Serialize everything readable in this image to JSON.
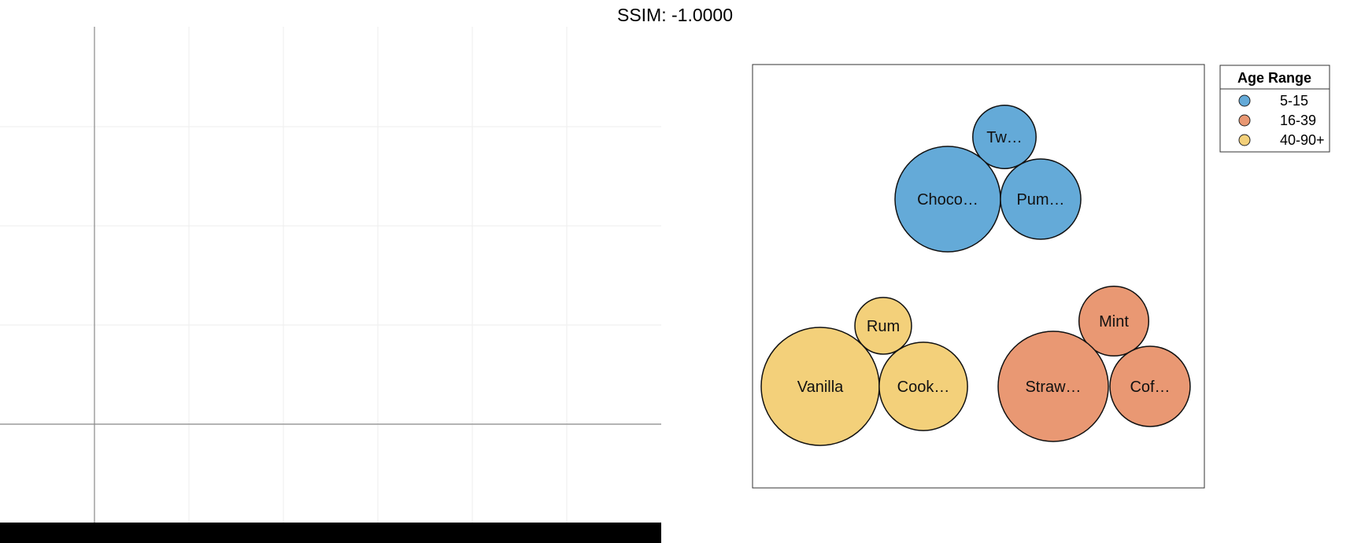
{
  "title": "SSIM: -1.0000",
  "chart_data": [
    {
      "type": "line",
      "title": "",
      "xlabel": "",
      "ylabel": "",
      "grid": true,
      "series": []
    },
    {
      "type": "bubble",
      "title": "",
      "legend": {
        "title": "Age Range",
        "placement": "top-right",
        "entries": [
          {
            "name": "5-15",
            "color": "#64aad8"
          },
          {
            "name": "16-39",
            "color": "#e99873"
          },
          {
            "name": "40-90+",
            "color": "#f3d07a"
          }
        ]
      },
      "groups": [
        {
          "name": "5-15",
          "color": "#64aad8",
          "bubbles": [
            {
              "label": "Tw…",
              "size": 0.36
            },
            {
              "label": "Choco…",
              "size": 1.0
            },
            {
              "label": "Pum…",
              "size": 0.58
            }
          ]
        },
        {
          "name": "16-39",
          "color": "#e99873",
          "bubbles": [
            {
              "label": "Mint",
              "size": 0.4
            },
            {
              "label": "Straw…",
              "size": 1.0
            },
            {
              "label": "Cof…",
              "size": 0.53
            }
          ]
        },
        {
          "name": "40-90+",
          "color": "#f3d07a",
          "bubbles": [
            {
              "label": "Rum",
              "size": 0.23
            },
            {
              "label": "Vanilla",
              "size": 1.0
            },
            {
              "label": "Cook…",
              "size": 0.56
            }
          ]
        }
      ]
    }
  ]
}
